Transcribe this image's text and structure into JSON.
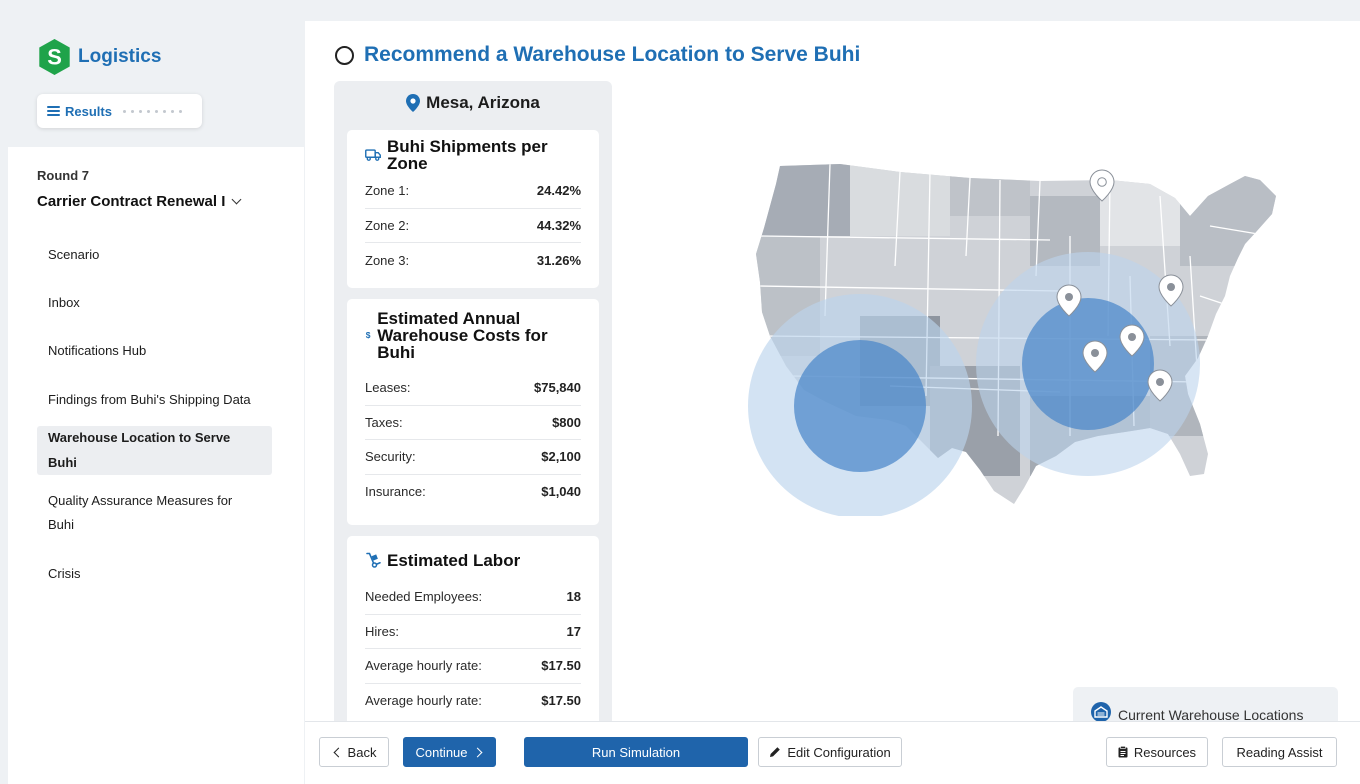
{
  "brand": {
    "name": "Logistics",
    "accent": "#1f6fb4",
    "logo_green": "#1fa34a"
  },
  "sidebar": {
    "results_label": "Results",
    "round_label": "Round 7",
    "round_title": "Carrier Contract Renewal I",
    "items": [
      {
        "label": "Scenario",
        "active": false
      },
      {
        "label": "Inbox",
        "active": false
      },
      {
        "label": "Notifications Hub",
        "active": false
      },
      {
        "label": "Findings from Buhi's Shipping Data",
        "active": false
      },
      {
        "label": "Warehouse Location to Serve Buhi",
        "active": true
      },
      {
        "label": "Quality Assurance Measures for Buhi",
        "active": false
      },
      {
        "label": "Crisis",
        "active": false
      }
    ]
  },
  "main": {
    "title": "Recommend a Warehouse Location to Serve Buhi",
    "location": "Mesa, Arizona",
    "shipments": {
      "title": "Buhi Shipments per Zone",
      "rows": [
        {
          "label": "Zone 1:",
          "value": "24.42%"
        },
        {
          "label": "Zone 2:",
          "value": "44.32%"
        },
        {
          "label": "Zone 3:",
          "value": "31.26%"
        }
      ]
    },
    "costs": {
      "title": "Estimated Annual Warehouse Costs for Buhi",
      "rows": [
        {
          "label": "Leases:",
          "value": "$75,840"
        },
        {
          "label": "Taxes:",
          "value": "$800"
        },
        {
          "label": "Security:",
          "value": "$2,100"
        },
        {
          "label": "Insurance:",
          "value": "$1,040"
        }
      ]
    },
    "labor": {
      "title": "Estimated Labor",
      "rows": [
        {
          "label": "Needed Employees:",
          "value": "18"
        },
        {
          "label": "Hires:",
          "value": "17"
        },
        {
          "label": "Average hourly rate:",
          "value": "$17.50"
        },
        {
          "label": "Average hourly rate:",
          "value": "$17.50"
        }
      ]
    },
    "legend": {
      "label": "Current Warehouse Locations"
    }
  },
  "footer": {
    "back": "Back",
    "continue": "Continue",
    "run": "Run Simulation",
    "edit": "Edit Configuration",
    "resources": "Resources",
    "reading": "Reading Assist"
  },
  "icons": {
    "brand": "logo-s-hexagon-icon",
    "menu": "hamburger-icon",
    "pin": "map-pin-icon",
    "truck": "truck-icon",
    "dollar": "dollar-icon",
    "dolly": "hand-truck-icon",
    "warehouse": "warehouse-icon",
    "edit": "pencil-icon",
    "resources": "clipboard-icon"
  },
  "colors": {
    "primary": "#1f64ab",
    "map_circle_light": "#cfe0f0",
    "map_circle_dark": "#5d93cf",
    "states": "#c9ccd1"
  }
}
